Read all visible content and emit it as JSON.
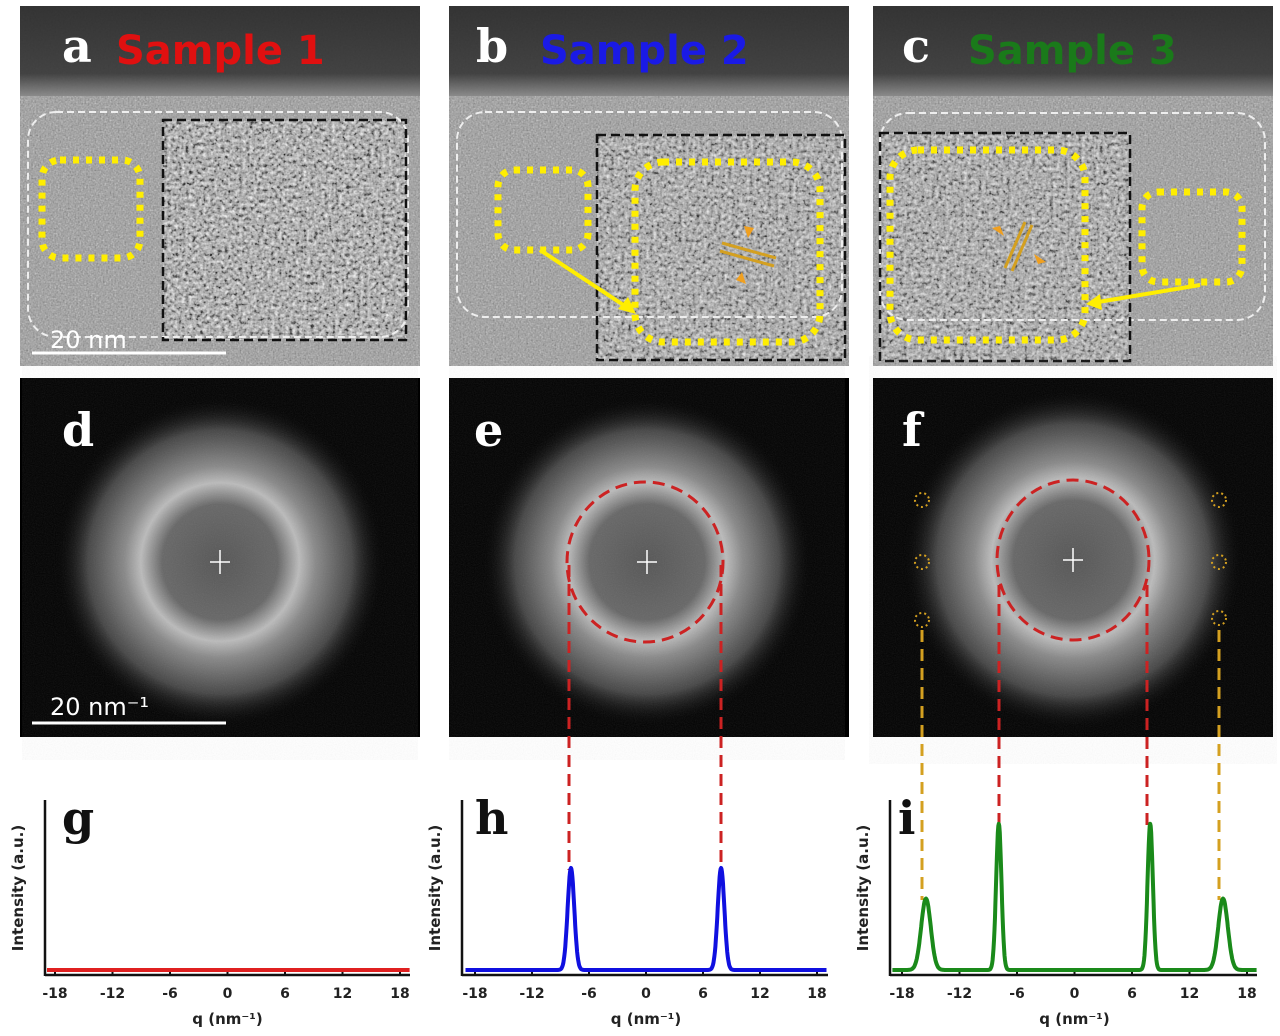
{
  "panels": {
    "a": {
      "letter": "a",
      "title": "Sample 1",
      "color": "#e01010"
    },
    "b": {
      "letter": "b",
      "title": "Sample 2",
      "color": "#1a1ae6"
    },
    "c": {
      "letter": "c",
      "title": "Sample 3",
      "color": "#1a7a1a"
    },
    "d": {
      "letter": "d"
    },
    "e": {
      "letter": "e"
    },
    "f": {
      "letter": "f"
    }
  },
  "scale_bars": {
    "real_space": "20 nm",
    "reciprocal": "20 nm⁻¹"
  },
  "colors": {
    "highlight": "#ffee00",
    "ring": "#cc2222",
    "outer_spots": "#d4a020"
  },
  "chart_data": [
    {
      "panel": "g",
      "type": "line",
      "color": "#e02020",
      "xlabel": "q (nm⁻¹)",
      "ylabel": "Intensity (a.u.)",
      "xlim": [
        -19,
        19
      ],
      "xticks": [
        -18,
        -12,
        -6,
        0,
        6,
        12,
        18
      ],
      "peaks": []
    },
    {
      "panel": "h",
      "type": "line",
      "color": "#1010e0",
      "xlabel": "q (nm⁻¹)",
      "ylabel": "Intensity (a.u.)",
      "xlim": [
        -19,
        19
      ],
      "xticks": [
        -18,
        -12,
        -6,
        0,
        6,
        12,
        18
      ],
      "peaks": [
        {
          "q": -7.9,
          "intensity": 0.6,
          "width": 0.35
        },
        {
          "q": 7.9,
          "intensity": 0.6,
          "width": 0.35
        }
      ]
    },
    {
      "panel": "i",
      "type": "line",
      "color": "#1a8a1a",
      "xlabel": "q (nm⁻¹)",
      "ylabel": "Intensity (a.u.)",
      "xlim": [
        -19,
        19
      ],
      "xticks": [
        -18,
        -12,
        -6,
        0,
        6,
        12,
        18
      ],
      "peaks": [
        {
          "q": -15.5,
          "intensity": 0.42,
          "width": 0.5
        },
        {
          "q": -7.9,
          "intensity": 0.86,
          "width": 0.28
        },
        {
          "q": 7.9,
          "intensity": 0.86,
          "width": 0.28
        },
        {
          "q": 15.5,
          "intensity": 0.42,
          "width": 0.5
        }
      ]
    }
  ]
}
